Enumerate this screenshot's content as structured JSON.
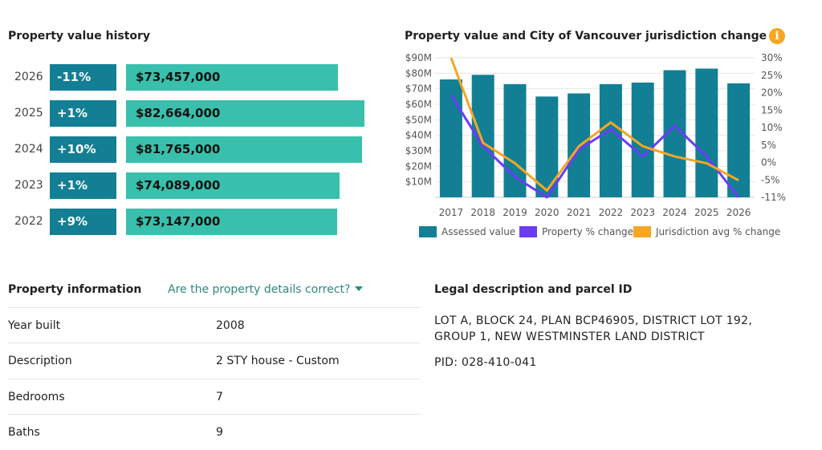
{
  "history": {
    "title": "Property value history",
    "rows": [
      {
        "year": "2026",
        "pct": "-11%",
        "value": "$73,457,000",
        "assessed": 73457000
      },
      {
        "year": "2025",
        "pct": "+1%",
        "value": "$82,664,000",
        "assessed": 82664000
      },
      {
        "year": "2024",
        "pct": "+10%",
        "value": "$81,765,000",
        "assessed": 81765000
      },
      {
        "year": "2023",
        "pct": "+1%",
        "value": "$74,089,000",
        "assessed": 74089000
      },
      {
        "year": "2022",
        "pct": "+9%",
        "value": "$73,147,000",
        "assessed": 73147000
      }
    ]
  },
  "chart": {
    "title": "Property value and City of Vancouver jurisdiction change",
    "info_icon": "info-icon",
    "legend": {
      "assessed": "Assessed value",
      "property": "Property % change",
      "jurisdiction": "Jurisdiction avg % change"
    }
  },
  "chart_data": {
    "type": "bar",
    "categories": [
      "2017",
      "2018",
      "2019",
      "2020",
      "2021",
      "2022",
      "2023",
      "2024",
      "2025",
      "2026"
    ],
    "series": [
      {
        "name": "Assessed value",
        "axis": "left",
        "type": "bar",
        "values": [
          76,
          79,
          73,
          65,
          67,
          73,
          74,
          82,
          83,
          73.5
        ],
        "color": "#137f94"
      },
      {
        "name": "Property % change",
        "axis": "right",
        "type": "line",
        "values": [
          19,
          4,
          -5,
          -11,
          3,
          9,
          1,
          10,
          1,
          -11
        ],
        "color": "#6a3df5"
      },
      {
        "name": "Jurisdiction avg % change",
        "axis": "right",
        "type": "line",
        "values": [
          30,
          5,
          -1,
          -9,
          4,
          11,
          4,
          1,
          -1,
          -6
        ],
        "color": "#f5a623"
      }
    ],
    "left_ticks": [
      "$10M",
      "$20M",
      "$30M",
      "$40M",
      "$50M",
      "$60M",
      "$70M",
      "$80M",
      "$90M"
    ],
    "right_ticks": [
      "30%",
      "25%",
      "20%",
      "15%",
      "10%",
      "5%",
      "0%",
      "-5%",
      "-11%"
    ],
    "ylim_left": [
      0,
      90
    ],
    "ylim_right": [
      -11,
      30
    ],
    "legend_position": "bottom"
  },
  "property_info": {
    "title": "Property information",
    "details_link": "Are the property details correct?",
    "rows": [
      {
        "key": "Year built",
        "value": "2008"
      },
      {
        "key": "Description",
        "value": "2 STY house - Custom"
      },
      {
        "key": "Bedrooms",
        "value": "7"
      },
      {
        "key": "Baths",
        "value": "9"
      }
    ]
  },
  "legal": {
    "title": "Legal description and parcel ID",
    "line1": "LOT A, BLOCK 24, PLAN BCP46905, DISTRICT LOT 192,",
    "line2": "GROUP 1, NEW WESTMINSTER LAND DISTRICT",
    "pid": "PID: 028-410-041"
  }
}
